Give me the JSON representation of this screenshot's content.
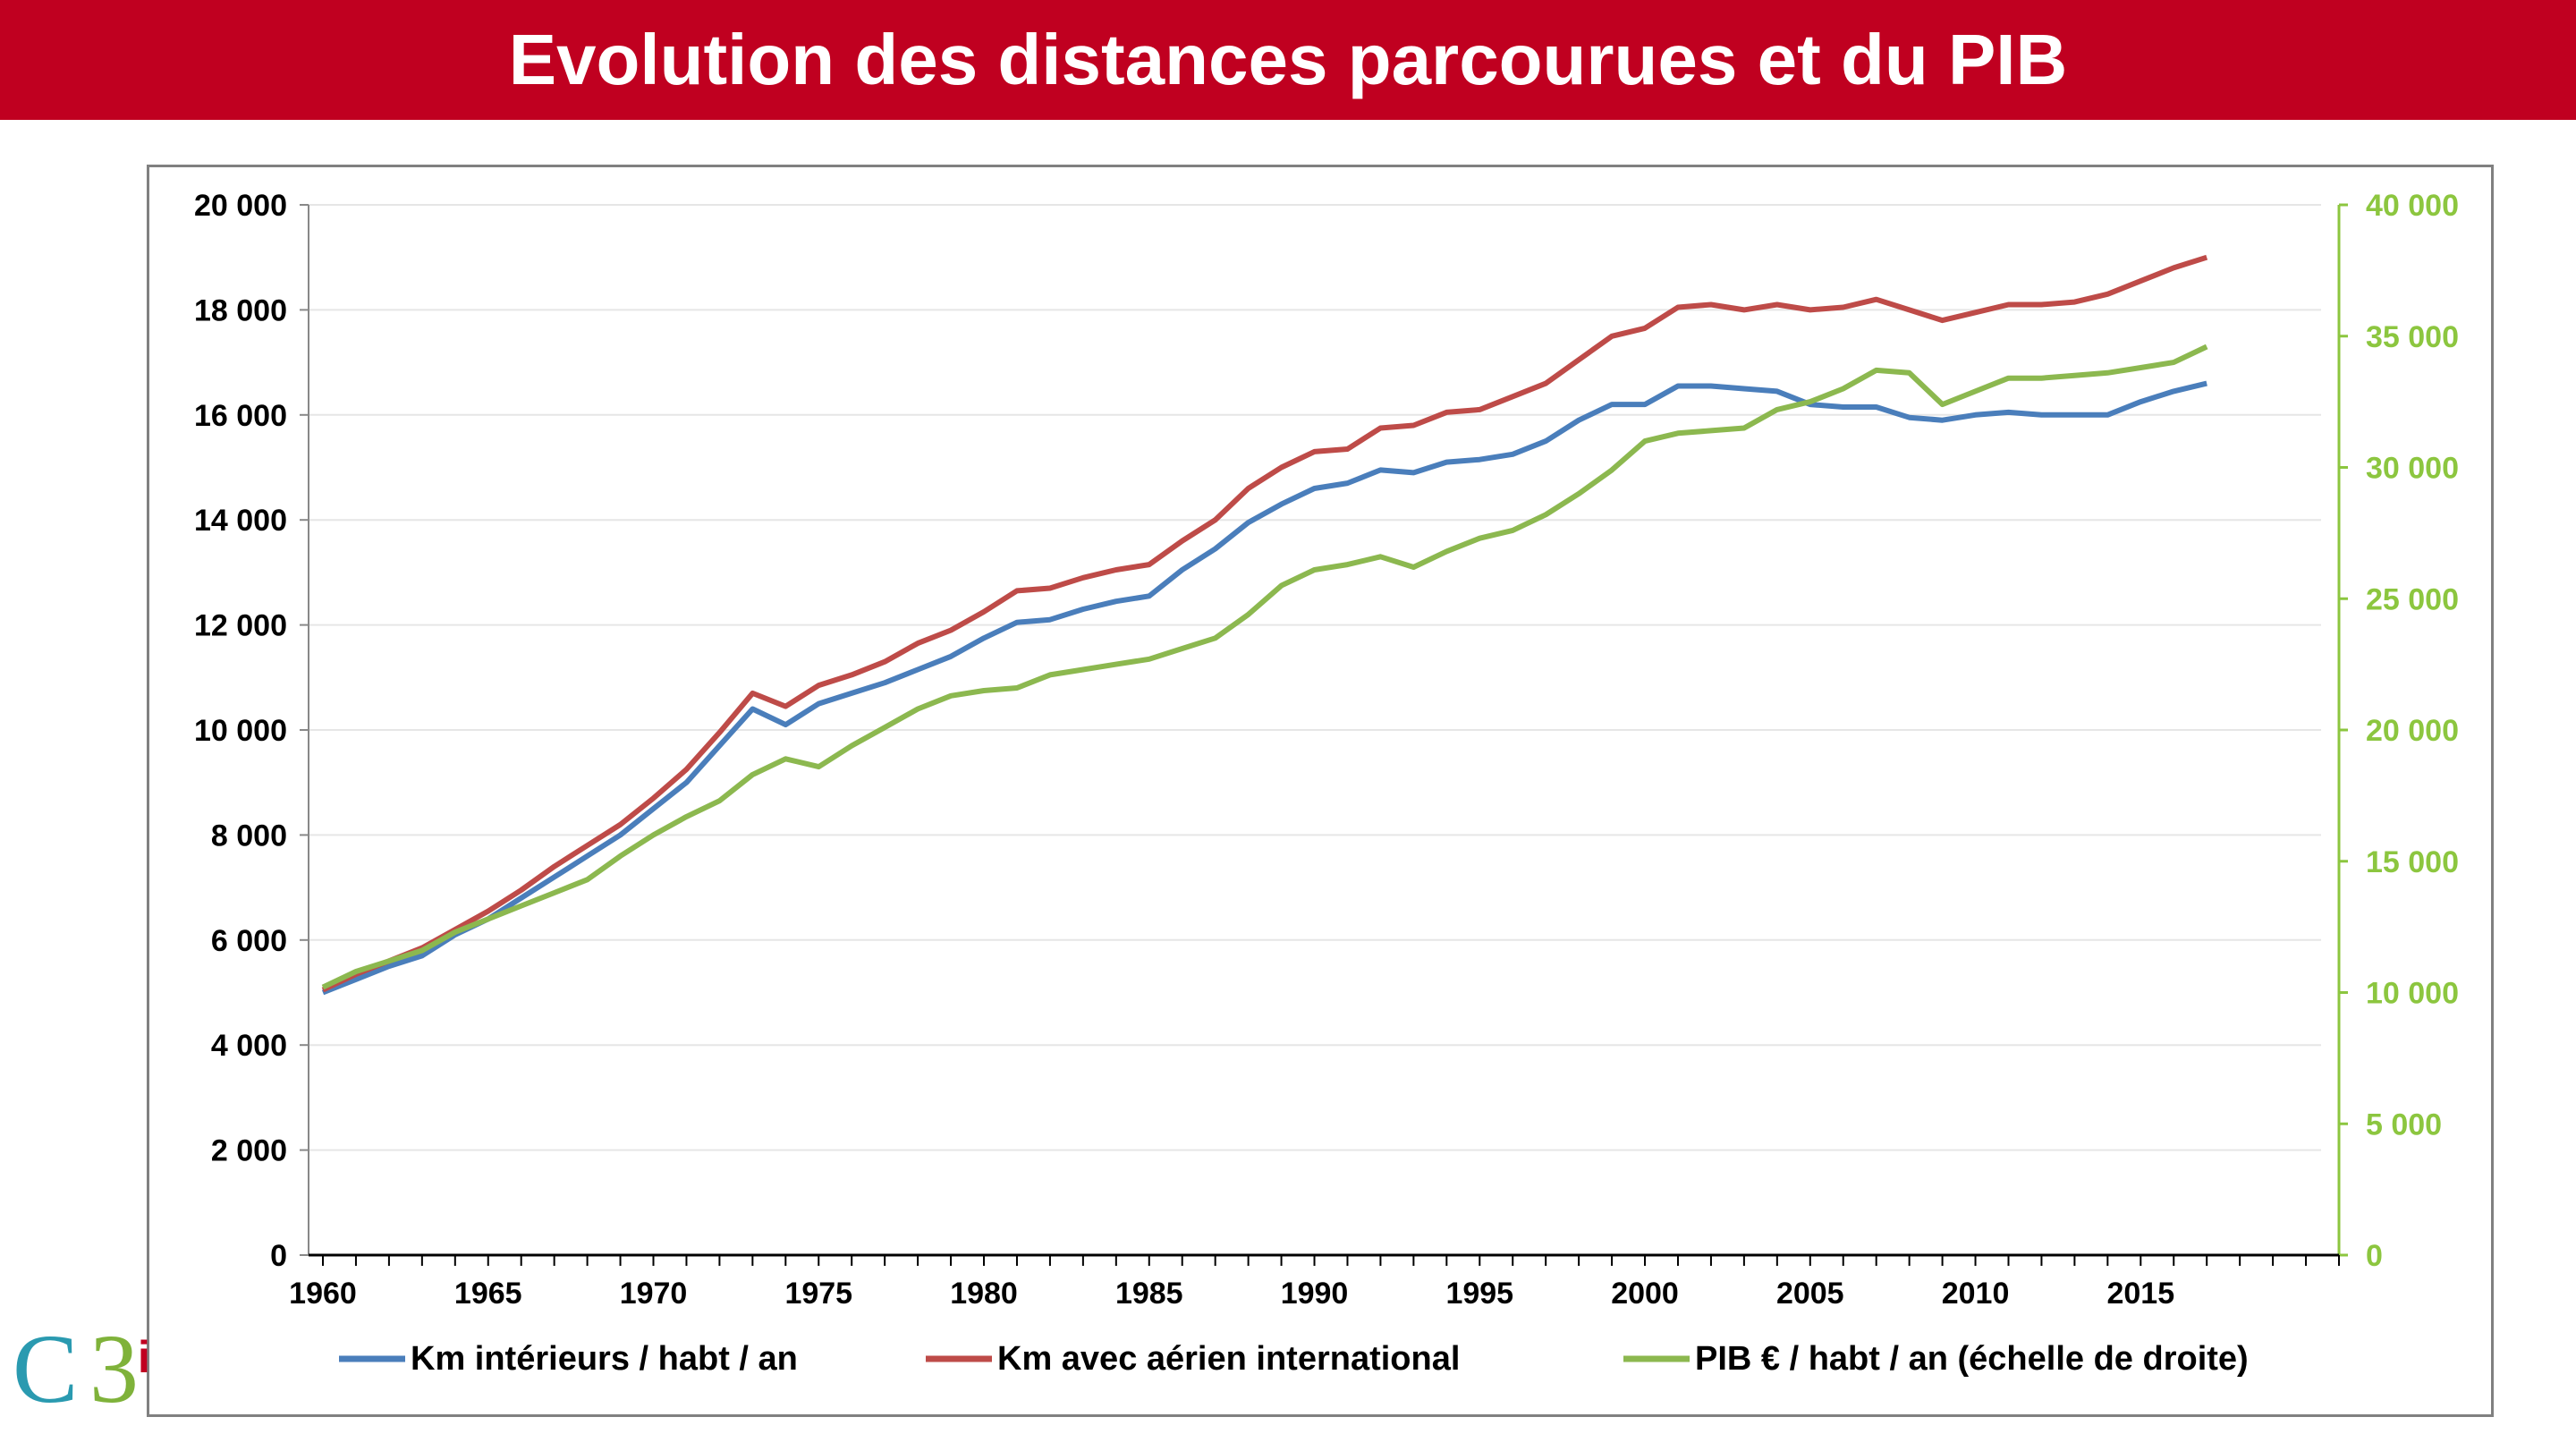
{
  "title": "Evolution des distances parcourues et du PIB",
  "logo": {
    "text": "C3",
    "accent": "i"
  },
  "colors": {
    "title_bg": "#c00020",
    "blue": "#4a7ebb",
    "red": "#be4b48",
    "green": "#8cb84f",
    "right_axis": "#8cc63f"
  },
  "chart_data": {
    "type": "line",
    "x": [
      1960,
      1961,
      1962,
      1963,
      1964,
      1965,
      1966,
      1967,
      1968,
      1969,
      1970,
      1971,
      1972,
      1973,
      1974,
      1975,
      1976,
      1977,
      1978,
      1979,
      1980,
      1981,
      1982,
      1983,
      1984,
      1985,
      1986,
      1987,
      1988,
      1989,
      1990,
      1991,
      1992,
      1993,
      1994,
      1995,
      1996,
      1997,
      1998,
      1999,
      2000,
      2001,
      2002,
      2003,
      2004,
      2005,
      2006,
      2007,
      2008,
      2009,
      2010,
      2011,
      2012,
      2013,
      2014,
      2015,
      2016,
      2017
    ],
    "xticks": [
      "1960",
      "1965",
      "1970",
      "1975",
      "1980",
      "1985",
      "1990",
      "1995",
      "2000",
      "2005",
      "2010",
      "2015"
    ],
    "xlim": [
      1960,
      2021
    ],
    "left_axis": {
      "ylim": [
        0,
        20000
      ],
      "ticks": [
        "0",
        "2 000",
        "4 000",
        "6 000",
        "8 000",
        "10 000",
        "12 000",
        "14 000",
        "16 000",
        "18 000",
        "20 000"
      ]
    },
    "right_axis": {
      "ylim": [
        0,
        40000
      ],
      "ticks": [
        "0",
        "5 000",
        "10 000",
        "15 000",
        "20 000",
        "25 000",
        "30 000",
        "35 000",
        "40 000"
      ]
    },
    "grid": "horizontal",
    "legend_position": "bottom",
    "series": [
      {
        "name": "Km intérieurs / habt / an",
        "axis": "left",
        "color": "#4a7ebb",
        "values": [
          5000,
          5250,
          5500,
          5700,
          6100,
          6400,
          6800,
          7200,
          7600,
          8000,
          8500,
          9000,
          9700,
          10400,
          10100,
          10500,
          10700,
          10900,
          11150,
          11400,
          11750,
          12050,
          12100,
          12300,
          12450,
          12550,
          13050,
          13450,
          13950,
          14300,
          14600,
          14700,
          14950,
          14900,
          15100,
          15150,
          15250,
          15500,
          15900,
          16200,
          16200,
          16550,
          16550,
          16500,
          16450,
          16200,
          16150,
          16150,
          15950,
          15900,
          16000,
          16050,
          16000,
          16000,
          16000,
          16250,
          16450,
          16600
        ]
      },
      {
        "name": "Km avec aérien international",
        "axis": "left",
        "color": "#be4b48",
        "values": [
          5050,
          5350,
          5600,
          5850,
          6200,
          6550,
          6950,
          7400,
          7800,
          8200,
          8700,
          9250,
          9950,
          10700,
          10450,
          10850,
          11050,
          11300,
          11650,
          11900,
          12250,
          12650,
          12700,
          12900,
          13050,
          13150,
          13600,
          14000,
          14600,
          15000,
          15300,
          15350,
          15750,
          15800,
          16050,
          16100,
          16350,
          16600,
          17050,
          17500,
          17650,
          18050,
          18100,
          18000,
          18100,
          18000,
          18050,
          18200,
          18000,
          17800,
          17950,
          18100,
          18100,
          18150,
          18300,
          18550,
          18800,
          19000
        ]
      },
      {
        "name": "PIB  € / habt / an (échelle de droite)",
        "axis": "right",
        "color": "#8cb84f",
        "values": [
          10200,
          10800,
          11200,
          11600,
          12300,
          12800,
          13300,
          13800,
          14300,
          15200,
          16000,
          16700,
          17300,
          18300,
          18900,
          18600,
          19400,
          20100,
          20800,
          21300,
          21500,
          21600,
          22100,
          22300,
          22500,
          22700,
          23100,
          23500,
          24400,
          25500,
          26100,
          26300,
          26600,
          26200,
          26800,
          27300,
          27600,
          28200,
          29000,
          29900,
          31000,
          31300,
          31400,
          31500,
          32200,
          32500,
          33000,
          33700,
          33600,
          32400,
          32900,
          33400,
          33400,
          33500,
          33600,
          33800,
          34000,
          34600
        ]
      }
    ]
  }
}
